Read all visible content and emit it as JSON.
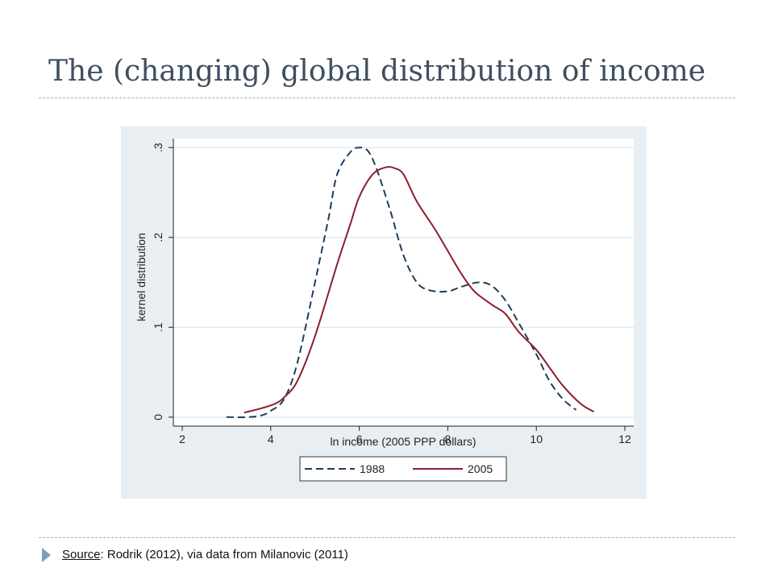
{
  "slide": {
    "title": "The (changing) global distribution of income",
    "source_label": "Source",
    "source_text": ": Rodrik (2012), via data from Milanovic (2011)"
  },
  "colors": {
    "plot_region_bg": "#e8eef2",
    "series_1988": "#1f3d5c",
    "series_2005": "#8b1e2e",
    "accent": "#7f9db8"
  },
  "chart_data": {
    "type": "line",
    "title": "",
    "xlabel": "ln income (2005 PPP dollars)",
    "ylabel": "kernel distribution",
    "xlim": [
      1.8,
      12.2
    ],
    "ylim": [
      -0.01,
      0.31
    ],
    "xticks": [
      2,
      4,
      6,
      8,
      10,
      12
    ],
    "yticks": [
      0,
      0.1,
      0.2,
      0.3
    ],
    "ytick_labels": [
      "0",
      ".1",
      ".2",
      ".3"
    ],
    "grid": true,
    "legend_position": "bottom",
    "series": [
      {
        "name": "1988",
        "style": "dashed",
        "x": [
          3.0,
          3.5,
          3.8,
          4.0,
          4.3,
          4.6,
          5.0,
          5.3,
          5.5,
          5.8,
          6.0,
          6.2,
          6.4,
          6.7,
          7.0,
          7.3,
          7.6,
          8.0,
          8.3,
          8.7,
          9.0,
          9.3,
          9.6,
          10.0,
          10.3,
          10.6,
          10.9
        ],
        "values": [
          0.0,
          0.0,
          0.002,
          0.007,
          0.02,
          0.06,
          0.15,
          0.22,
          0.27,
          0.295,
          0.3,
          0.296,
          0.275,
          0.23,
          0.18,
          0.15,
          0.141,
          0.14,
          0.145,
          0.15,
          0.146,
          0.13,
          0.105,
          0.07,
          0.04,
          0.02,
          0.008
        ]
      },
      {
        "name": "2005",
        "style": "solid",
        "x": [
          3.4,
          3.8,
          4.1,
          4.3,
          4.6,
          5.0,
          5.5,
          5.8,
          6.0,
          6.3,
          6.6,
          6.8,
          7.0,
          7.3,
          7.7,
          8.0,
          8.3,
          8.6,
          9.0,
          9.3,
          9.6,
          10.0,
          10.3,
          10.6,
          11.0,
          11.3
        ],
        "values": [
          0.005,
          0.01,
          0.015,
          0.022,
          0.04,
          0.09,
          0.17,
          0.215,
          0.245,
          0.27,
          0.278,
          0.277,
          0.27,
          0.24,
          0.21,
          0.185,
          0.16,
          0.14,
          0.125,
          0.115,
          0.095,
          0.075,
          0.055,
          0.035,
          0.015,
          0.006
        ]
      }
    ]
  }
}
